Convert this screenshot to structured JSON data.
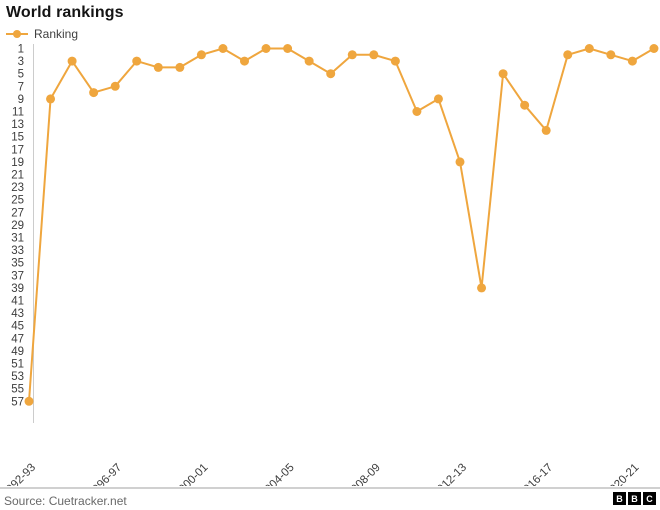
{
  "header": {
    "title": "World rankings"
  },
  "legend": {
    "label": "Ranking"
  },
  "footer": {
    "source": "Source: Cuetracker.net",
    "logo_letters": [
      "B",
      "B",
      "C"
    ]
  },
  "colors": {
    "accent": "#EFA63E",
    "axis_text": "#3d3d3d",
    "spine": "#cccccc",
    "divider": "#d0d0d0",
    "source_text": "#696969",
    "logo_bg": "#000000",
    "logo_text": "#ffffff"
  },
  "chart_data": {
    "type": "line",
    "title": "World rankings",
    "categories": [
      "1992-93",
      "1993-94",
      "1994-95",
      "1995-96",
      "1996-97",
      "1997-98",
      "1998-99",
      "1999-00",
      "2000-01",
      "2001-02",
      "2002-03",
      "2003-04",
      "2004-05",
      "2005-06",
      "2006-07",
      "2007-08",
      "2008-09",
      "2009-10",
      "2010-11",
      "2011-12",
      "2012-13",
      "2013-14",
      "2014-15",
      "2015-16",
      "2016-17",
      "2017-18",
      "2018-19",
      "2019-20",
      "2020-21",
      "2021-22"
    ],
    "series": [
      {
        "name": "Ranking",
        "values": [
          57,
          9,
          3,
          8,
          7,
          3,
          4,
          4,
          2,
          1,
          3,
          1,
          1,
          3,
          5,
          2,
          2,
          3,
          11,
          9,
          19,
          39,
          5,
          10,
          14,
          2,
          1,
          2,
          3,
          1
        ]
      }
    ],
    "x_tick_labels": [
      "1992-93",
      "1996-97",
      "2000-01",
      "2004-05",
      "2008-09",
      "2012-13",
      "2016-17",
      "2020-21"
    ],
    "y_axis": {
      "inverted": true,
      "min": 1,
      "max": 57,
      "tick_step": 2,
      "tick_labels": [
        1,
        3,
        5,
        7,
        9,
        11,
        13,
        15,
        17,
        19,
        21,
        23,
        25,
        27,
        29,
        31,
        33,
        35,
        37,
        39,
        41,
        43,
        45,
        47,
        49,
        51,
        53,
        55,
        57
      ]
    },
    "grid": false,
    "legend_position": "top-left",
    "marker": "circle"
  }
}
